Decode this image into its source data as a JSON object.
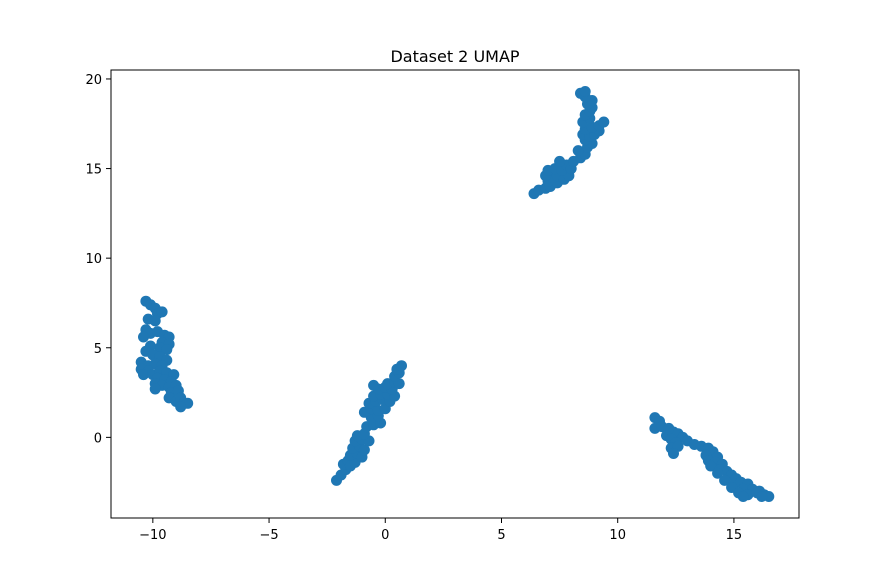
{
  "chart_data": {
    "type": "scatter",
    "title": "Dataset 2 UMAP",
    "xlabel": "",
    "ylabel": "",
    "xlim": [
      -11.8,
      17.8
    ],
    "ylim": [
      -4.5,
      20.5
    ],
    "x_ticks": [
      -10,
      -5,
      0,
      5,
      10,
      15
    ],
    "y_ticks": [
      0,
      5,
      10,
      15,
      20
    ],
    "grid": false,
    "legend": "none",
    "point_color": "#1f77b4",
    "series": [
      {
        "points": [
          [
            -10.3,
            7.6
          ],
          [
            -10.1,
            7.4
          ],
          [
            -9.9,
            7.2
          ],
          [
            -9.8,
            6.9
          ],
          [
            -9.6,
            7.0
          ],
          [
            -10.2,
            6.6
          ],
          [
            -9.9,
            6.5
          ],
          [
            -10.3,
            6.0
          ],
          [
            -10.1,
            5.8
          ],
          [
            -10.4,
            5.6
          ],
          [
            -9.8,
            5.9
          ],
          [
            -9.5,
            5.7
          ],
          [
            -9.3,
            5.6
          ],
          [
            -9.6,
            5.3
          ],
          [
            -9.3,
            5.2
          ],
          [
            -9.7,
            5.0
          ],
          [
            -9.4,
            4.9
          ],
          [
            -10.1,
            5.1
          ],
          [
            -10.3,
            4.8
          ],
          [
            -10.0,
            4.6
          ],
          [
            -9.7,
            4.5
          ],
          [
            -9.4,
            4.3
          ],
          [
            -10.5,
            4.2
          ],
          [
            -10.2,
            4.0
          ],
          [
            -9.9,
            4.1
          ],
          [
            -9.6,
            4.0
          ],
          [
            -10.5,
            3.8
          ],
          [
            -10.2,
            3.7
          ],
          [
            -10.4,
            3.5
          ],
          [
            -10.0,
            3.5
          ],
          [
            -9.7,
            3.7
          ],
          [
            -9.4,
            3.6
          ],
          [
            -9.1,
            3.5
          ],
          [
            -9.8,
            3.3
          ],
          [
            -9.5,
            3.2
          ],
          [
            -9.2,
            3.1
          ],
          [
            -9.9,
            3.0
          ],
          [
            -9.6,
            2.9
          ],
          [
            -9.3,
            2.8
          ],
          [
            -9.0,
            2.9
          ],
          [
            -9.9,
            2.7
          ],
          [
            -9.2,
            2.5
          ],
          [
            -8.9,
            2.6
          ],
          [
            -9.3,
            2.2
          ],
          [
            -9.0,
            2.0
          ],
          [
            -8.8,
            2.2
          ],
          [
            -8.7,
            1.9
          ],
          [
            -8.5,
            1.9
          ],
          [
            -8.8,
            1.7
          ]
        ]
      },
      {
        "points": [
          [
            -2.1,
            -2.4
          ],
          [
            -1.9,
            -2.1
          ],
          [
            -1.7,
            -1.8
          ],
          [
            -1.8,
            -1.5
          ],
          [
            -1.6,
            -1.3
          ],
          [
            -1.5,
            -1.6
          ],
          [
            -1.3,
            -1.4
          ],
          [
            -1.5,
            -1.0
          ],
          [
            -1.2,
            -0.9
          ],
          [
            -1.0,
            -1.1
          ],
          [
            -1.4,
            -0.6
          ],
          [
            -1.1,
            -0.5
          ],
          [
            -0.9,
            -0.7
          ],
          [
            -1.3,
            -0.2
          ],
          [
            -1.0,
            -0.1
          ],
          [
            -0.7,
            -0.2
          ],
          [
            -1.2,
            0.1
          ],
          [
            -0.9,
            0.2
          ],
          [
            -0.8,
            0.6
          ],
          [
            -0.5,
            0.7
          ],
          [
            -0.2,
            0.8
          ],
          [
            -0.6,
            1.1
          ],
          [
            -0.3,
            1.2
          ],
          [
            -0.9,
            1.4
          ],
          [
            -0.6,
            1.6
          ],
          [
            -0.3,
            1.5
          ],
          [
            0.0,
            1.6
          ],
          [
            -0.7,
            1.9
          ],
          [
            -0.4,
            2.0
          ],
          [
            -0.1,
            2.1
          ],
          [
            0.2,
            2.0
          ],
          [
            -0.5,
            2.3
          ],
          [
            -0.2,
            2.4
          ],
          [
            0.1,
            2.4
          ],
          [
            0.4,
            2.3
          ],
          [
            -0.3,
            2.7
          ],
          [
            0.0,
            2.8
          ],
          [
            0.3,
            2.7
          ],
          [
            -0.5,
            2.9
          ],
          [
            0.1,
            3.0
          ],
          [
            0.4,
            3.1
          ],
          [
            0.6,
            3.0
          ],
          [
            0.4,
            3.4
          ],
          [
            0.6,
            3.6
          ],
          [
            0.5,
            3.8
          ],
          [
            0.7,
            4.0
          ]
        ]
      },
      {
        "points": [
          [
            6.4,
            13.6
          ],
          [
            6.6,
            13.8
          ],
          [
            6.9,
            13.9
          ],
          [
            7.1,
            14.0
          ],
          [
            7.4,
            14.2
          ],
          [
            7.0,
            14.3
          ],
          [
            7.2,
            14.5
          ],
          [
            6.9,
            14.6
          ],
          [
            7.4,
            14.6
          ],
          [
            7.7,
            14.4
          ],
          [
            7.9,
            14.6
          ],
          [
            7.0,
            14.9
          ],
          [
            7.3,
            15.0
          ],
          [
            7.6,
            14.9
          ],
          [
            7.8,
            15.2
          ],
          [
            8.0,
            15.0
          ],
          [
            8.1,
            15.4
          ],
          [
            7.5,
            15.4
          ],
          [
            8.4,
            15.6
          ],
          [
            8.6,
            15.8
          ],
          [
            8.3,
            16.0
          ],
          [
            8.7,
            16.2
          ],
          [
            8.9,
            16.4
          ],
          [
            8.6,
            16.6
          ],
          [
            8.5,
            16.9
          ],
          [
            8.8,
            16.8
          ],
          [
            9.0,
            16.9
          ],
          [
            9.2,
            17.1
          ],
          [
            8.6,
            17.2
          ],
          [
            8.9,
            17.3
          ],
          [
            9.2,
            17.4
          ],
          [
            9.4,
            17.6
          ],
          [
            8.5,
            17.6
          ],
          [
            8.8,
            17.8
          ],
          [
            8.6,
            18.0
          ],
          [
            8.8,
            18.2
          ],
          [
            8.9,
            18.4
          ],
          [
            8.7,
            18.6
          ],
          [
            8.9,
            18.8
          ],
          [
            8.6,
            19.0
          ],
          [
            8.4,
            19.2
          ],
          [
            8.6,
            19.3
          ]
        ]
      },
      {
        "points": [
          [
            11.6,
            1.1
          ],
          [
            11.8,
            0.9
          ],
          [
            11.6,
            0.5
          ],
          [
            11.9,
            0.6
          ],
          [
            12.2,
            0.5
          ],
          [
            12.4,
            0.3
          ],
          [
            12.6,
            0.2
          ],
          [
            12.1,
            0.1
          ],
          [
            12.3,
            -0.1
          ],
          [
            12.8,
            0.0
          ],
          [
            13.0,
            -0.2
          ],
          [
            12.5,
            -0.3
          ],
          [
            12.3,
            -0.6
          ],
          [
            12.6,
            -0.5
          ],
          [
            12.4,
            -0.9
          ],
          [
            13.3,
            -0.4
          ],
          [
            13.6,
            -0.5
          ],
          [
            13.9,
            -0.6
          ],
          [
            14.1,
            -0.8
          ],
          [
            13.8,
            -1.0
          ],
          [
            14.3,
            -1.1
          ],
          [
            13.9,
            -1.3
          ],
          [
            14.2,
            -1.4
          ],
          [
            14.5,
            -1.5
          ],
          [
            14.0,
            -1.6
          ],
          [
            14.4,
            -1.8
          ],
          [
            14.7,
            -1.9
          ],
          [
            14.3,
            -2.0
          ],
          [
            14.9,
            -2.1
          ],
          [
            15.1,
            -2.3
          ],
          [
            14.6,
            -2.4
          ],
          [
            15.0,
            -2.6
          ],
          [
            15.3,
            -2.5
          ],
          [
            15.6,
            -2.6
          ],
          [
            14.9,
            -2.8
          ],
          [
            15.4,
            -2.9
          ],
          [
            15.8,
            -2.9
          ],
          [
            16.1,
            -3.0
          ],
          [
            15.2,
            -3.1
          ],
          [
            15.6,
            -3.2
          ],
          [
            16.0,
            -3.1
          ],
          [
            16.3,
            -3.2
          ],
          [
            16.5,
            -3.3
          ],
          [
            16.2,
            -3.3
          ],
          [
            15.4,
            -3.3
          ]
        ]
      }
    ]
  }
}
